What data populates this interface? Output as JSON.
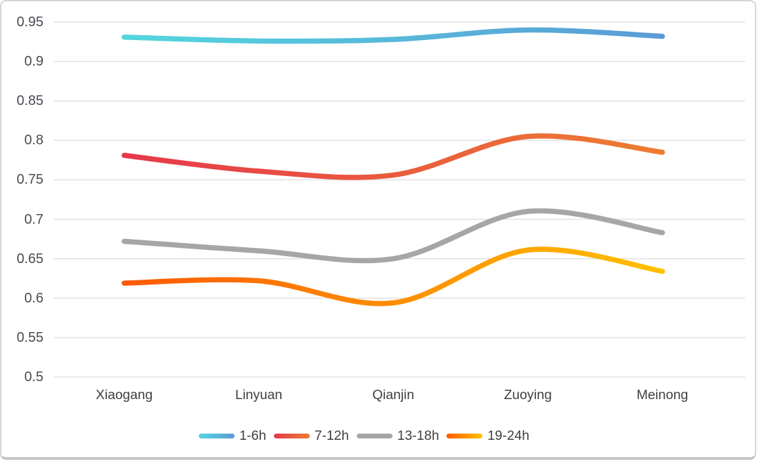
{
  "chart_data": {
    "type": "line",
    "smooth": true,
    "title": "",
    "xlabel": "",
    "ylabel": "",
    "categories": [
      "Xiaogang",
      "Linyuan",
      "Qianjin",
      "Zuoying",
      "Meinong"
    ],
    "series": [
      {
        "name": "1-6h",
        "values": [
          0.931,
          0.926,
          0.928,
          0.94,
          0.932
        ],
        "color_start": "#53D6DE",
        "color_end": "#5B9BD5"
      },
      {
        "name": "7-12h",
        "values": [
          0.781,
          0.761,
          0.756,
          0.805,
          0.785
        ],
        "color_start": "#E6394B",
        "color_end": "#ED7D31"
      },
      {
        "name": "13-18h",
        "values": [
          0.672,
          0.66,
          0.65,
          0.71,
          0.683
        ],
        "color_start": "#A6A6A6",
        "color_end": "#A6A6A6"
      },
      {
        "name": "19-24h",
        "values": [
          0.619,
          0.622,
          0.594,
          0.661,
          0.634
        ],
        "color_start": "#FC5A02",
        "color_end": "#FFC000"
      }
    ],
    "ylim": [
      0.5,
      0.95
    ],
    "ytick_step": 0.05,
    "ytick_labels": [
      "0.95",
      "0.9",
      "0.85",
      "0.8",
      "0.75",
      "0.7",
      "0.65",
      "0.6",
      "0.55",
      "0.5"
    ],
    "grid": true,
    "legend_position": "bottom"
  },
  "colors": {
    "grid": "#E3E3E3",
    "tick_label": "#4A4C53",
    "category_label": "#3F3F3F",
    "legend_label": "#3F3F3F",
    "card_border": "#C9C9C9",
    "background": "#FFFFFF"
  }
}
